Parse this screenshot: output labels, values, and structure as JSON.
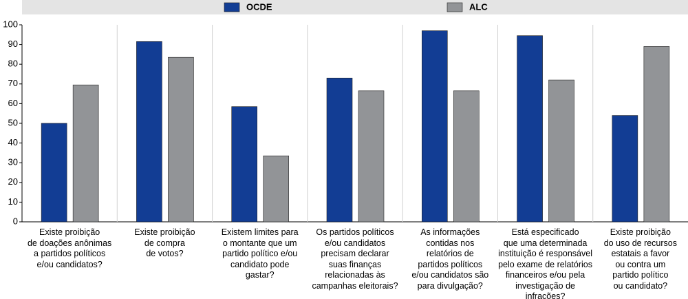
{
  "chart_data": {
    "type": "bar",
    "categories": [
      "Existe proibição\nde doações anônimas\na partidos políticos\ne/ou candidatos?",
      "Existe proibição\nde compra\nde votos?",
      "Existem limites para\no montante que um\npartido político e/ou\ncandidato pode\ngastar?",
      "Os partidos políticos\ne/ou candidatos\nprecisam declarar\nsuas finanças\nrelacionadas às\ncampanhas eleitorais?",
      "As informações\ncontidas nos\nrelatórios de\npartidos políticos\ne/ou candidatos são\npara divulgação?",
      "Está especificado\nque uma determinada\ninstituição é responsável\npelo exame de relatórios\nfinanceiros e/ou pela\ninvestigação de infrações?",
      "Existe proibição\ndo uso de recursos\nestatais a favor\nou contra um\npartido político\nou candidato?"
    ],
    "series": [
      {
        "name": "OCDE",
        "color": "#123d94",
        "values": [
          50,
          91.5,
          58.5,
          73,
          97,
          94.5,
          54
        ]
      },
      {
        "name": "ALC",
        "color": "#929497",
        "values": [
          69.5,
          83.5,
          33.5,
          66.5,
          66.5,
          72,
          89
        ]
      }
    ],
    "ylim": [
      0,
      100
    ],
    "yticks": [
      0,
      10,
      20,
      30,
      40,
      50,
      60,
      70,
      80,
      90,
      100
    ],
    "grid": false,
    "legend": "top"
  }
}
